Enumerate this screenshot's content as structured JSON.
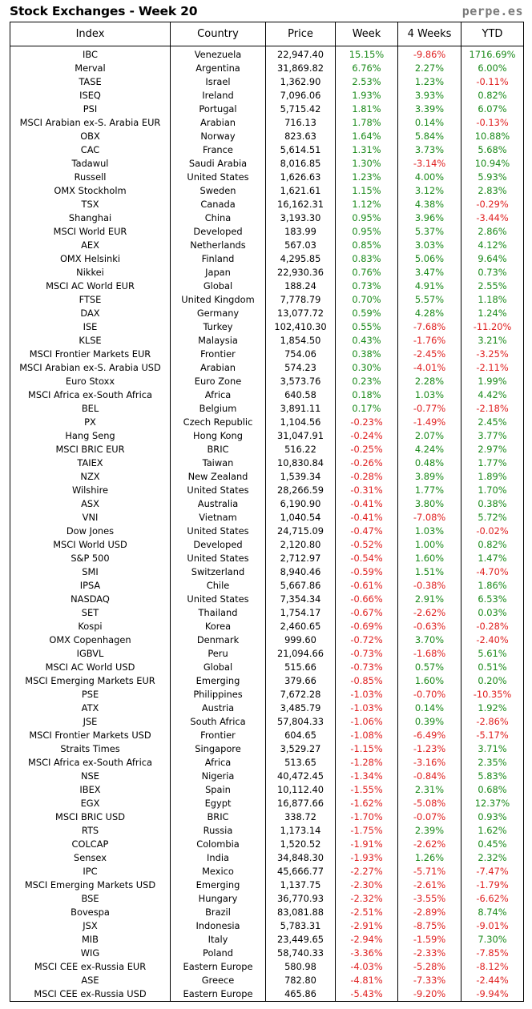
{
  "title": "Stock Exchanges - Week 20",
  "brand": "perpe.es",
  "colors": {
    "positive": "#1a8a1a",
    "negative": "#e02020",
    "brand": "#7a7a7a"
  },
  "headers": [
    "Index",
    "Country",
    "Price",
    "Week",
    "4 Weeks",
    "YTD"
  ],
  "rows": [
    [
      "IBC",
      "Venezuela",
      "22,947.40",
      "15.15%",
      "-9.86%",
      "1716.69%"
    ],
    [
      "Merval",
      "Argentina",
      "31,869.82",
      "6.76%",
      "2.27%",
      "6.00%"
    ],
    [
      "TASE",
      "Israel",
      "1,362.90",
      "2.53%",
      "1.23%",
      "-0.11%"
    ],
    [
      "ISEQ",
      "Ireland",
      "7,096.06",
      "1.93%",
      "3.93%",
      "0.82%"
    ],
    [
      "PSI",
      "Portugal",
      "5,715.42",
      "1.81%",
      "3.39%",
      "6.07%"
    ],
    [
      "MSCI Arabian ex-S. Arabia EUR",
      "Arabian",
      "716.13",
      "1.78%",
      "0.14%",
      "-0.13%"
    ],
    [
      "OBX",
      "Norway",
      "823.63",
      "1.64%",
      "5.84%",
      "10.88%"
    ],
    [
      "CAC",
      "France",
      "5,614.51",
      "1.31%",
      "3.73%",
      "5.68%"
    ],
    [
      "Tadawul",
      "Saudi Arabia",
      "8,016.85",
      "1.30%",
      "-3.14%",
      "10.94%"
    ],
    [
      "Russell",
      "United States",
      "1,626.63",
      "1.23%",
      "4.00%",
      "5.93%"
    ],
    [
      "OMX Stockholm",
      "Sweden",
      "1,621.61",
      "1.15%",
      "3.12%",
      "2.83%"
    ],
    [
      "TSX",
      "Canada",
      "16,162.31",
      "1.12%",
      "4.38%",
      "-0.29%"
    ],
    [
      "Shanghai",
      "China",
      "3,193.30",
      "0.95%",
      "3.96%",
      "-3.44%"
    ],
    [
      "MSCI World EUR",
      "Developed",
      "183.99",
      "0.95%",
      "5.37%",
      "2.86%"
    ],
    [
      "AEX",
      "Netherlands",
      "567.03",
      "0.85%",
      "3.03%",
      "4.12%"
    ],
    [
      "OMX Helsinki",
      "Finland",
      "4,295.85",
      "0.83%",
      "5.06%",
      "9.64%"
    ],
    [
      "Nikkei",
      "Japan",
      "22,930.36",
      "0.76%",
      "3.47%",
      "0.73%"
    ],
    [
      "MSCI AC World EUR",
      "Global",
      "188.24",
      "0.73%",
      "4.91%",
      "2.55%"
    ],
    [
      "FTSE",
      "United Kingdom",
      "7,778.79",
      "0.70%",
      "5.57%",
      "1.18%"
    ],
    [
      "DAX",
      "Germany",
      "13,077.72",
      "0.59%",
      "4.28%",
      "1.24%"
    ],
    [
      "ISE",
      "Turkey",
      "102,410.30",
      "0.55%",
      "-7.68%",
      "-11.20%"
    ],
    [
      "KLSE",
      "Malaysia",
      "1,854.50",
      "0.43%",
      "-1.76%",
      "3.21%"
    ],
    [
      "MSCI Frontier Markets EUR",
      "Frontier",
      "754.06",
      "0.38%",
      "-2.45%",
      "-3.25%"
    ],
    [
      "MSCI Arabian ex-S. Arabia USD",
      "Arabian",
      "574.23",
      "0.30%",
      "-4.01%",
      "-2.11%"
    ],
    [
      "Euro Stoxx",
      "Euro Zone",
      "3,573.76",
      "0.23%",
      "2.28%",
      "1.99%"
    ],
    [
      "MSCI Africa ex-South Africa",
      "Africa",
      "640.58",
      "0.18%",
      "1.03%",
      "4.42%"
    ],
    [
      "BEL",
      "Belgium",
      "3,891.11",
      "0.17%",
      "-0.77%",
      "-2.18%"
    ],
    [
      "PX",
      "Czech Republic",
      "1,104.56",
      "-0.23%",
      "-1.49%",
      "2.45%"
    ],
    [
      "Hang Seng",
      "Hong Kong",
      "31,047.91",
      "-0.24%",
      "2.07%",
      "3.77%"
    ],
    [
      "MSCI BRIC EUR",
      "BRIC",
      "516.22",
      "-0.25%",
      "4.24%",
      "2.97%"
    ],
    [
      "TAIEX",
      "Taiwan",
      "10,830.84",
      "-0.26%",
      "0.48%",
      "1.77%"
    ],
    [
      "NZX",
      "New Zealand",
      "1,539.34",
      "-0.28%",
      "3.89%",
      "1.89%"
    ],
    [
      "Wilshire",
      "United States",
      "28,266.59",
      "-0.31%",
      "1.77%",
      "1.70%"
    ],
    [
      "ASX",
      "Australia",
      "6,190.90",
      "-0.41%",
      "3.80%",
      "0.38%"
    ],
    [
      "VNI",
      "Vietnam",
      "1,040.54",
      "-0.41%",
      "-7.08%",
      "5.72%"
    ],
    [
      "Dow Jones",
      "United States",
      "24,715.09",
      "-0.47%",
      "1.03%",
      "-0.02%"
    ],
    [
      "MSCI World USD",
      "Developed",
      "2,120.80",
      "-0.52%",
      "1.00%",
      "0.82%"
    ],
    [
      "S&P 500",
      "United States",
      "2,712.97",
      "-0.54%",
      "1.60%",
      "1.47%"
    ],
    [
      "SMI",
      "Switzerland",
      "8,940.46",
      "-0.59%",
      "1.51%",
      "-4.70%"
    ],
    [
      "IPSA",
      "Chile",
      "5,667.86",
      "-0.61%",
      "-0.38%",
      "1.86%"
    ],
    [
      "NASDAQ",
      "United States",
      "7,354.34",
      "-0.66%",
      "2.91%",
      "6.53%"
    ],
    [
      "SET",
      "Thailand",
      "1,754.17",
      "-0.67%",
      "-2.62%",
      "0.03%"
    ],
    [
      "Kospi",
      "Korea",
      "2,460.65",
      "-0.69%",
      "-0.63%",
      "-0.28%"
    ],
    [
      "OMX Copenhagen",
      "Denmark",
      "999.60",
      "-0.72%",
      "3.70%",
      "-2.40%"
    ],
    [
      "IGBVL",
      "Peru",
      "21,094.66",
      "-0.73%",
      "-1.68%",
      "5.61%"
    ],
    [
      "MSCI AC World USD",
      "Global",
      "515.66",
      "-0.73%",
      "0.57%",
      "0.51%"
    ],
    [
      "MSCI Emerging Markets EUR",
      "Emerging",
      "379.66",
      "-0.85%",
      "1.60%",
      "0.20%"
    ],
    [
      "PSE",
      "Philippines",
      "7,672.28",
      "-1.03%",
      "-0.70%",
      "-10.35%"
    ],
    [
      "ATX",
      "Austria",
      "3,485.79",
      "-1.03%",
      "0.14%",
      "1.92%"
    ],
    [
      "JSE",
      "South Africa",
      "57,804.33",
      "-1.06%",
      "0.39%",
      "-2.86%"
    ],
    [
      "MSCI Frontier Markets USD",
      "Frontier",
      "604.65",
      "-1.08%",
      "-6.49%",
      "-5.17%"
    ],
    [
      "Straits Times",
      "Singapore",
      "3,529.27",
      "-1.15%",
      "-1.23%",
      "3.71%"
    ],
    [
      "MSCI Africa ex-South Africa",
      "Africa",
      "513.65",
      "-1.28%",
      "-3.16%",
      "2.35%"
    ],
    [
      "NSE",
      "Nigeria",
      "40,472.45",
      "-1.34%",
      "-0.84%",
      "5.83%"
    ],
    [
      "IBEX",
      "Spain",
      "10,112.40",
      "-1.55%",
      "2.31%",
      "0.68%"
    ],
    [
      "EGX",
      "Egypt",
      "16,877.66",
      "-1.62%",
      "-5.08%",
      "12.37%"
    ],
    [
      "MSCI BRIC USD",
      "BRIC",
      "338.72",
      "-1.70%",
      "-0.07%",
      "0.93%"
    ],
    [
      "RTS",
      "Russia",
      "1,173.14",
      "-1.75%",
      "2.39%",
      "1.62%"
    ],
    [
      "COLCAP",
      "Colombia",
      "1,520.52",
      "-1.91%",
      "-2.62%",
      "0.45%"
    ],
    [
      "Sensex",
      "India",
      "34,848.30",
      "-1.93%",
      "1.26%",
      "2.32%"
    ],
    [
      "IPC",
      "Mexico",
      "45,666.77",
      "-2.27%",
      "-5.71%",
      "-7.47%"
    ],
    [
      "MSCI Emerging Markets USD",
      "Emerging",
      "1,137.75",
      "-2.30%",
      "-2.61%",
      "-1.79%"
    ],
    [
      "BSE",
      "Hungary",
      "36,770.93",
      "-2.32%",
      "-3.55%",
      "-6.62%"
    ],
    [
      "Bovespa",
      "Brazil",
      "83,081.88",
      "-2.51%",
      "-2.89%",
      "8.74%"
    ],
    [
      "JSX",
      "Indonesia",
      "5,783.31",
      "-2.91%",
      "-8.75%",
      "-9.01%"
    ],
    [
      "MIB",
      "Italy",
      "23,449.65",
      "-2.94%",
      "-1.59%",
      "7.30%"
    ],
    [
      "WIG",
      "Poland",
      "58,740.33",
      "-3.36%",
      "-2.33%",
      "-7.85%"
    ],
    [
      "MSCI CEE ex-Russia EUR",
      "Eastern Europe",
      "580.98",
      "-4.03%",
      "-5.28%",
      "-8.12%"
    ],
    [
      "ASE",
      "Greece",
      "782.80",
      "-4.81%",
      "-7.33%",
      "-2.44%"
    ],
    [
      "MSCI CEE ex-Russia USD",
      "Eastern Europe",
      "465.86",
      "-5.43%",
      "-9.20%",
      "-9.94%"
    ]
  ]
}
